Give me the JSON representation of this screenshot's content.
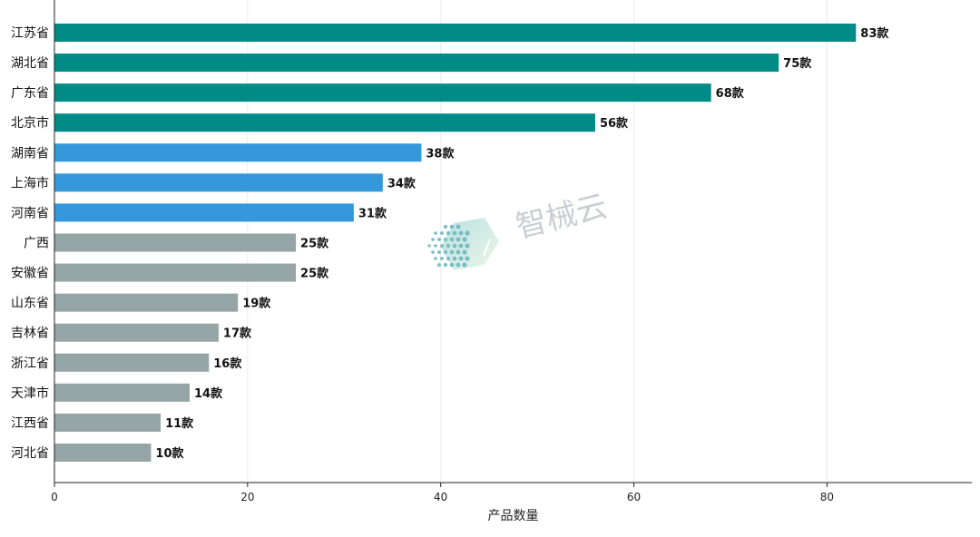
{
  "chart_data": {
    "type": "bar",
    "orientation": "horizontal",
    "categories": [
      "江苏省",
      "湖北省",
      "广东省",
      "北京市",
      "湖南省",
      "上海市",
      "河南省",
      "广西",
      "安徽省",
      "山东省",
      "吉林省",
      "浙江省",
      "天津市",
      "江西省",
      "河北省"
    ],
    "values": [
      83,
      75,
      68,
      56,
      38,
      34,
      31,
      25,
      25,
      19,
      17,
      16,
      14,
      11,
      10
    ],
    "value_labels": [
      "83款",
      "75款",
      "68款",
      "56款",
      "38款",
      "34款",
      "31款",
      "25款",
      "25款",
      "19款",
      "17款",
      "16款",
      "14款",
      "11款",
      "10款"
    ],
    "bar_colors": [
      "#008b87",
      "#008b87",
      "#008b87",
      "#008b87",
      "#3498db",
      "#3498db",
      "#3498db",
      "#95a5a6",
      "#95a5a6",
      "#95a5a6",
      "#95a5a6",
      "#95a5a6",
      "#95a5a6",
      "#95a5a6",
      "#95a5a6"
    ],
    "title": "",
    "xlabel": "产品数量",
    "ylabel": "",
    "xlim": [
      0,
      95
    ],
    "xticks": [
      0,
      20,
      40,
      60,
      80
    ],
    "grid": "vertical",
    "legend": "none"
  },
  "watermark": {
    "text": "智械云",
    "icon": "hexagon-dots-logo"
  }
}
